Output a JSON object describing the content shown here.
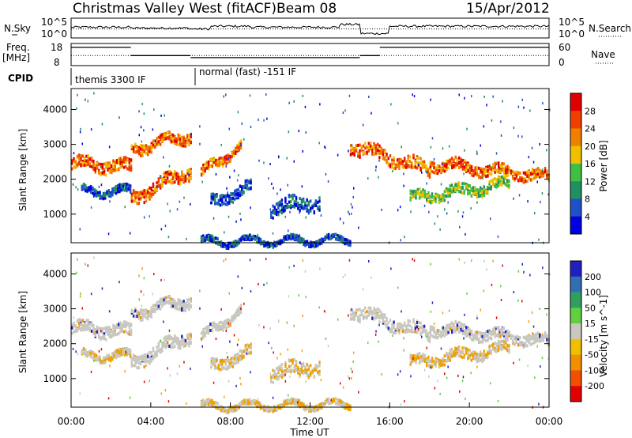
{
  "header": {
    "title": "Christmas Valley West (fitACF)",
    "beam": "Beam 08",
    "date": "15/Apr/2012"
  },
  "chart_data": [
    {
      "type": "line",
      "name": "N.Sky / N.Search panel",
      "left_label": "N.Sky",
      "right_label": "N.Search",
      "left_ticks": [
        "10^5",
        "10^0"
      ],
      "right_ticks": [
        "10^5",
        "10^0"
      ],
      "x_hours": [
        0,
        3,
        6,
        7,
        9,
        12,
        13.5,
        14.5,
        16,
        18,
        22,
        24
      ],
      "sky_level": [
        0.55,
        0.5,
        0.45,
        0.6,
        0.55,
        0.55,
        0.7,
        0.2,
        0.6,
        0.6,
        0.6,
        0.6
      ]
    },
    {
      "type": "line",
      "name": "Frequency / Nave panel",
      "left_label": "Freq.",
      "left_unit": "[MHz]",
      "right_label": "Nave",
      "left_ticks": [
        "18",
        "8"
      ],
      "right_ticks": [
        "60",
        "0"
      ],
      "freq_steps": [
        {
          "x0": 0.0,
          "x1": 3.0,
          "level": 0.85
        },
        {
          "x0": 3.0,
          "x1": 6.0,
          "level": 0.45
        },
        {
          "x0": 6.0,
          "x1": 14.5,
          "level": 0.35
        },
        {
          "x0": 14.5,
          "x1": 15.5,
          "level": 0.45
        },
        {
          "x0": 15.5,
          "x1": 24.0,
          "level": 0.85
        }
      ]
    },
    {
      "type": "table",
      "name": "CPID",
      "label": "CPID",
      "modes": [
        {
          "start": 0.0,
          "text": "themis 3300 IF"
        },
        {
          "start": 6.0,
          "text": "normal (fast) -151 IF"
        }
      ]
    },
    {
      "type": "heatmap",
      "name": "Power",
      "ylabel": "Slant Range [km]",
      "yticks": [
        1000,
        2000,
        3000,
        4000
      ],
      "ylim": [
        180,
        4600
      ],
      "colorbar_label": "Power [dB]",
      "colorbar_ticks": [
        "4",
        "8",
        "12",
        "16",
        "20",
        "24",
        "28"
      ],
      "colorbar_colors": [
        "#0000e0",
        "#2050c8",
        "#209060",
        "#40c040",
        "#f0c000",
        "#f08000",
        "#f04000",
        "#e00000"
      ]
    },
    {
      "type": "heatmap",
      "name": "Velocity",
      "ylabel": "Slant Range [km]",
      "yticks": [
        1000,
        2000,
        3000,
        4000
      ],
      "ylim": [
        180,
        4600
      ],
      "colorbar_label": "Velocity [m s^-1]",
      "colorbar_ticks": [
        "200",
        "100",
        "50",
        "15",
        "-15",
        "-50",
        "-100",
        "-200"
      ],
      "colorbar_colors": [
        "#2020c0",
        "#3070b0",
        "#30a060",
        "#60d040",
        "#c8c8c0",
        "#f0c000",
        "#f09000",
        "#f05000",
        "#e00000"
      ],
      "xlabel": "Time UT",
      "xticks": [
        "00:00",
        "04:00",
        "08:00",
        "12:00",
        "16:00",
        "20:00",
        "00:00"
      ]
    }
  ]
}
